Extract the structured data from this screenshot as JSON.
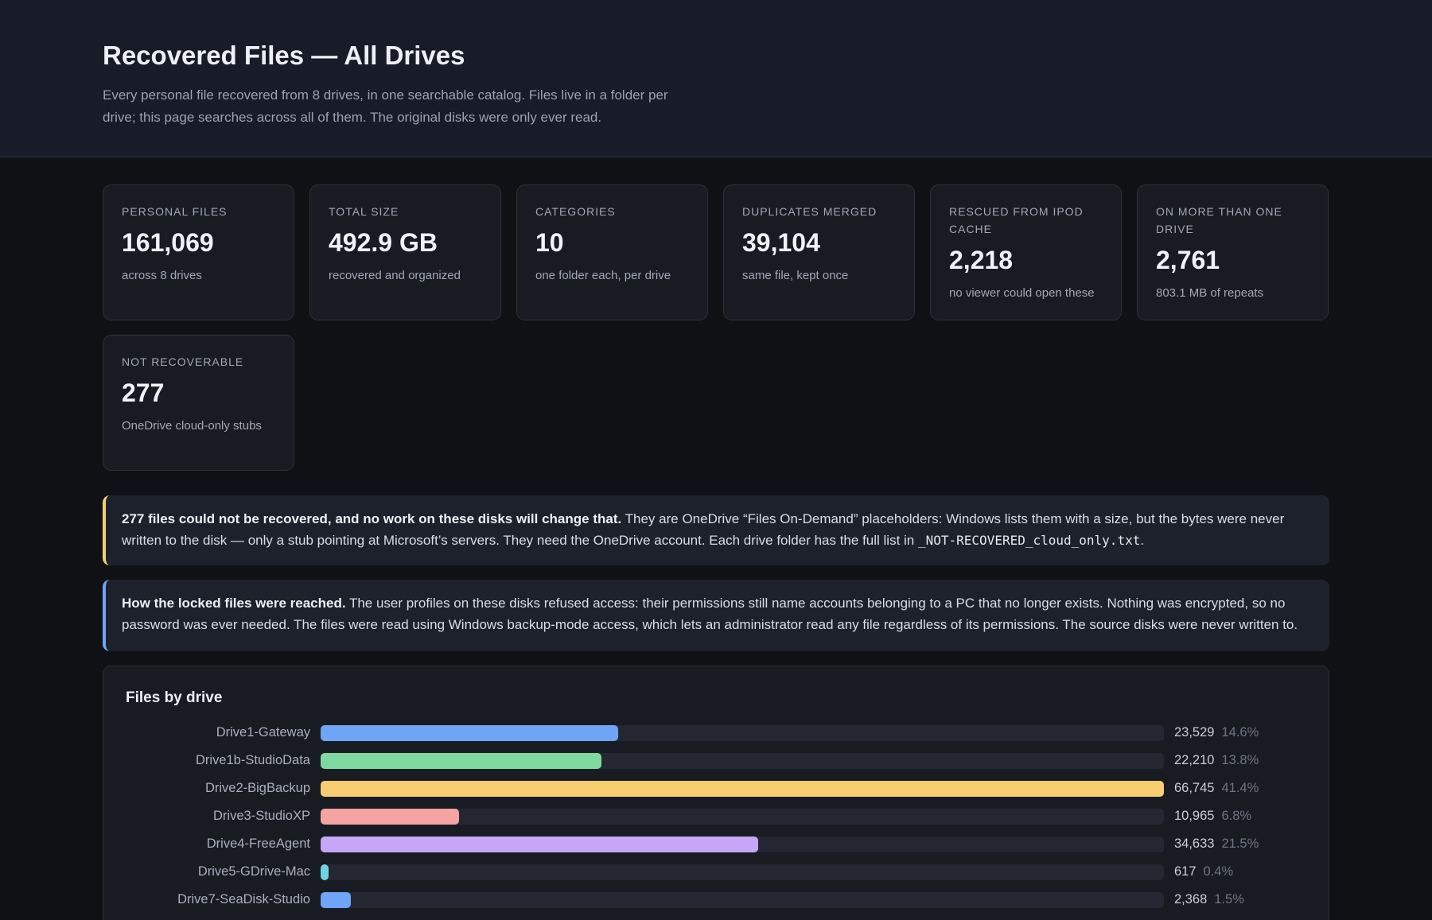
{
  "header": {
    "title": "Recovered Files — All Drives",
    "description": "Every personal file recovered from 8 drives, in one searchable catalog. Files live in a folder per drive; this page searches across all of them. The original disks were only ever read."
  },
  "stats": [
    {
      "label": "PERSONAL FILES",
      "value": "161,069",
      "sub": "across 8 drives"
    },
    {
      "label": "TOTAL SIZE",
      "value": "492.9 GB",
      "sub": "recovered and organized"
    },
    {
      "label": "CATEGORIES",
      "value": "10",
      "sub": "one folder each, per drive"
    },
    {
      "label": "DUPLICATES MERGED",
      "value": "39,104",
      "sub": "same file, kept once"
    },
    {
      "label": "RESCUED FROM IPOD CACHE",
      "value": "2,218",
      "sub": "no viewer could open these"
    },
    {
      "label": "ON MORE THAN ONE DRIVE",
      "value": "2,761",
      "sub": "803.1 MB of repeats"
    },
    {
      "label": "NOT RECOVERABLE",
      "value": "277",
      "sub": "OneDrive cloud-only stubs"
    }
  ],
  "notices": {
    "not_recovered": {
      "bold": "277 files could not be recovered, and no work on these disks will change that.",
      "text": " They are OneDrive “Files On-Demand” placeholders: Windows lists them with a size, but the bytes were never written to the disk — only a stub pointing at Microsoft’s servers. They need the OneDrive account. Each drive folder has the full list in ",
      "code": "_NOT-RECOVERED_cloud_only.txt",
      "end": "."
    },
    "locked": {
      "bold": "How the locked files were reached.",
      "text": " The user profiles on these disks refused access: their permissions still name accounts belonging to a PC that no longer exists. Nothing was encrypted, so no password was ever needed. The files were read using Windows backup-mode access, which lets an administrator read any file regardless of its permissions. The source disks were never written to."
    }
  },
  "chart_data": {
    "type": "bar",
    "orientation": "horizontal",
    "title": "Files by drive",
    "max": 66745,
    "categories": [
      "Drive1-Gateway",
      "Drive1b-StudioData",
      "Drive2-BigBackup",
      "Drive3-StudioXP",
      "Drive4-FreeAgent",
      "Drive5-GDrive-Mac",
      "Drive7-SeaDisk-Studio"
    ],
    "values": [
      23529,
      22210,
      66745,
      10965,
      34633,
      617,
      2368
    ],
    "value_labels": [
      "23,529",
      "22,210",
      "66,745",
      "10,965",
      "34,633",
      "617",
      "2,368"
    ],
    "percent_labels": [
      "14.6%",
      "13.8%",
      "41.4%",
      "6.8%",
      "21.5%",
      "0.4%",
      "1.5%"
    ],
    "colors": [
      "#6fa5f6",
      "#7dd9a0",
      "#f7cd6f",
      "#f5a3a3",
      "#c5a6f7",
      "#6fd4e0",
      "#6fa5f6"
    ]
  }
}
